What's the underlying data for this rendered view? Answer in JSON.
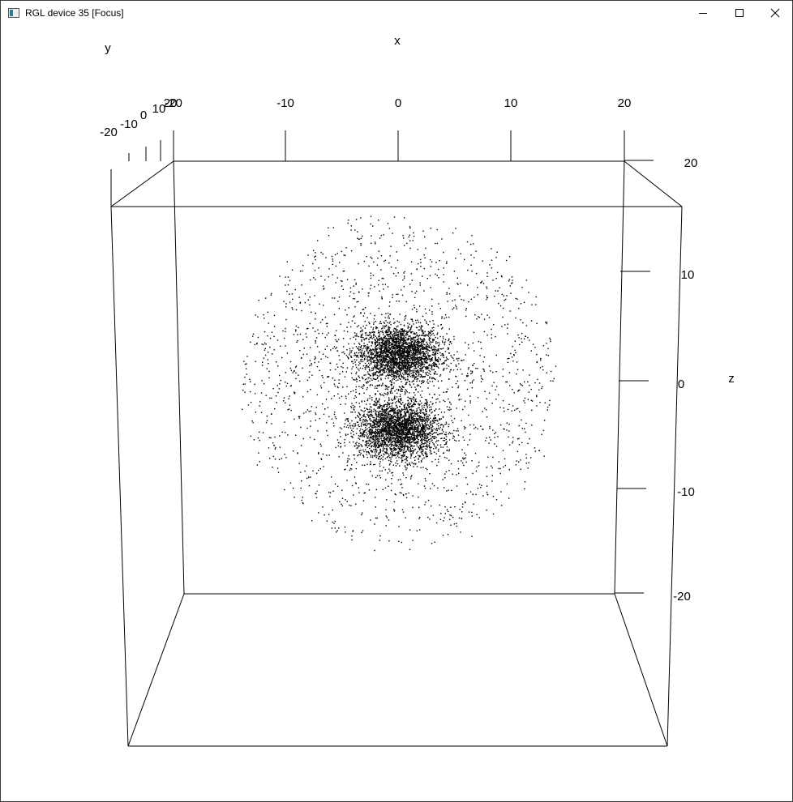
{
  "window": {
    "title": "RGL device 35 [Focus]",
    "icon": "rgl-app-icon",
    "controls": [
      "minimize-icon",
      "maximize-icon",
      "close-icon"
    ]
  },
  "chart_data": {
    "type": "scatter",
    "dimensions": 3,
    "axis_labels": {
      "x": "x",
      "y": "y",
      "z": "z"
    },
    "x_ticks": [
      "-20",
      "-10",
      "0",
      "10",
      "20"
    ],
    "y_ticks": [
      "-20",
      "-10",
      "0",
      "10",
      "20"
    ],
    "z_ticks": [
      "20",
      "10",
      "0",
      "-10",
      "-20"
    ],
    "xlim": [
      -20,
      20
    ],
    "ylim": [
      -20,
      20
    ],
    "zlim": [
      -20,
      20
    ],
    "point_color": "#000000",
    "box": true,
    "grid": false,
    "clusters": [
      {
        "center_x": 0,
        "center_z": 2.5,
        "spread": 2.2,
        "density": "dense"
      },
      {
        "center_x": 0,
        "center_z": -4.5,
        "spread": 2.2,
        "density": "dense"
      },
      {
        "center_x": 0,
        "center_z": 0,
        "radius": 14,
        "density": "sparse halo"
      }
    ]
  }
}
